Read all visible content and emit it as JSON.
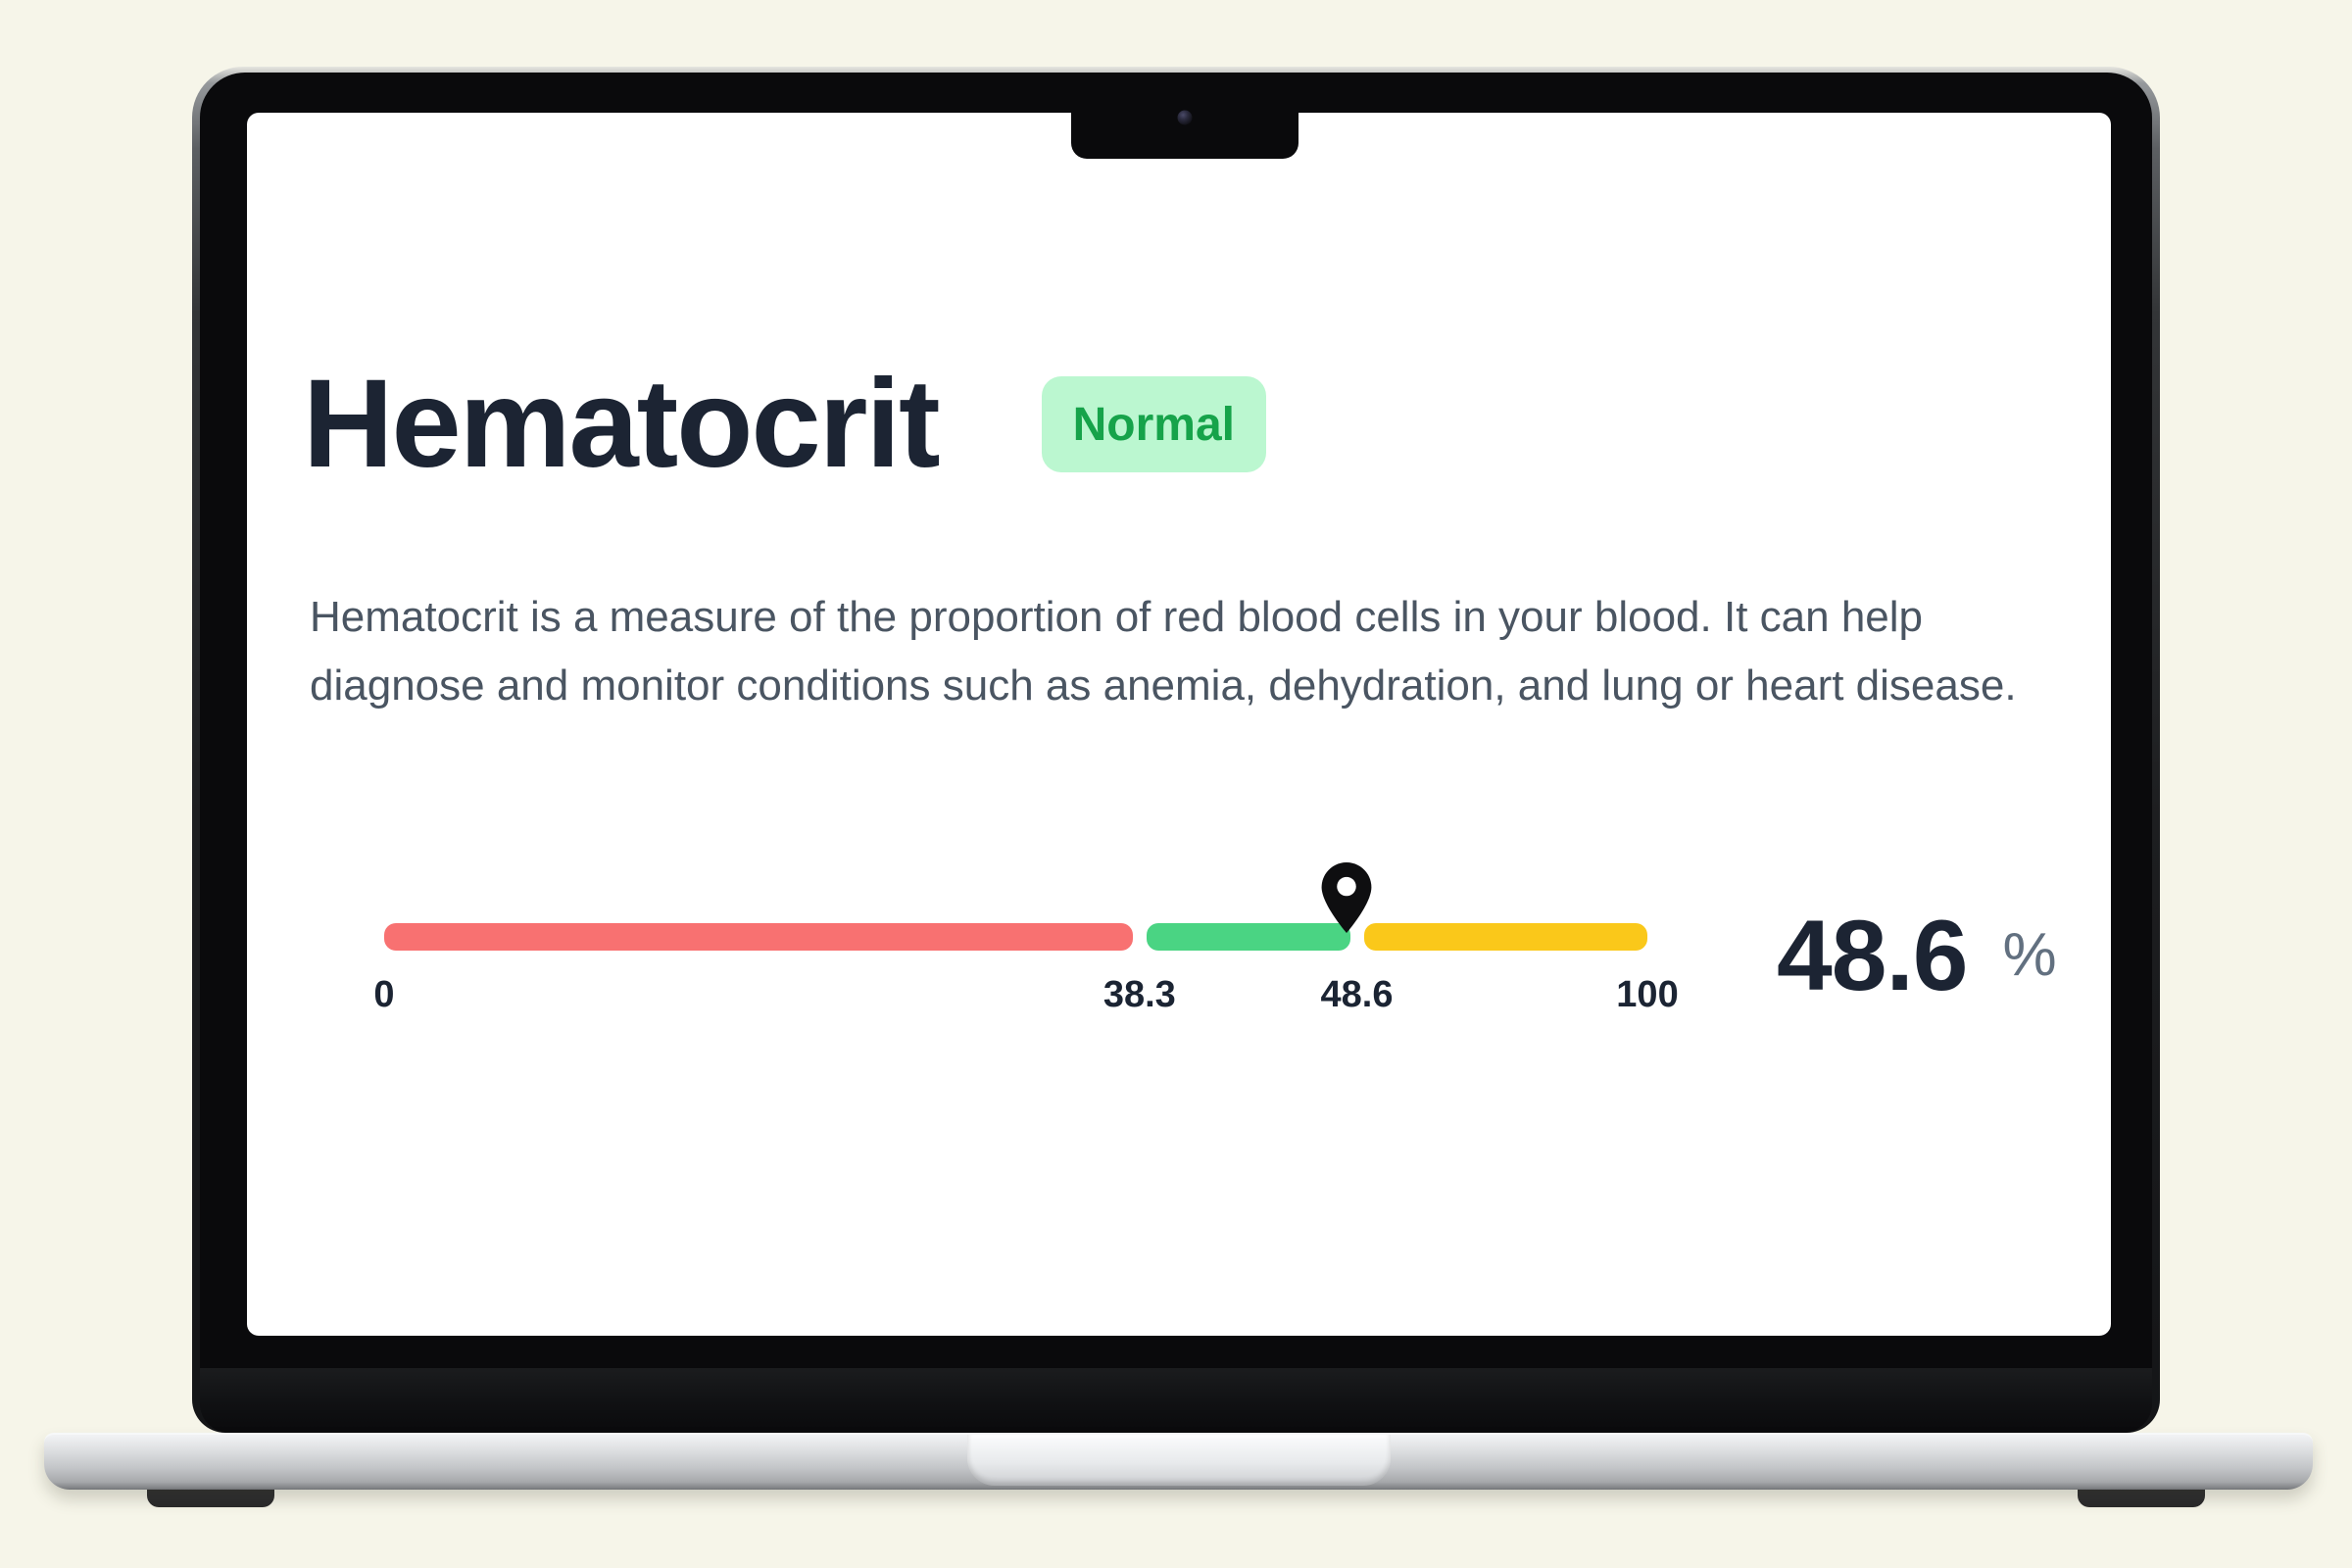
{
  "colors": {
    "page-bg": "#f6f5e9",
    "title": "#1c2433",
    "description": "#4a5562",
    "tick": "#1b2433",
    "unit": "#627080",
    "badge-bg": "#bbf7d0",
    "badge-text": "#16a34a",
    "pin": "#0e0e10"
  },
  "screen": {
    "title": "Hematocrit",
    "status_badge": {
      "label": "Normal"
    },
    "description": "Hematocrit is a measure of the proportion of red blood cells in your blood. It can help diagnose and monitor conditions such as anemia, dehydration, and lung or heart disease.",
    "reading": {
      "value": "48.6",
      "unit": "%"
    }
  },
  "chart_data": {
    "type": "bar",
    "title": "Hematocrit range gauge",
    "min": 0,
    "max": 100,
    "value": 48.6,
    "unit": "%",
    "status": "Normal",
    "ranges": [
      {
        "name": "below-normal",
        "from": 0,
        "to": 38.3,
        "color": "#f87171",
        "width_pct": 59.3
      },
      {
        "name": "normal",
        "from": 38.3,
        "to": 48.6,
        "color": "#4ad483",
        "width_pct": 16.1
      },
      {
        "name": "above-normal",
        "from": 48.6,
        "to": 100,
        "color": "#fac81a",
        "width_pct": 22.4
      }
    ],
    "ticks": [
      {
        "label": "0",
        "pos_pct": 0
      },
      {
        "label": "38.3",
        "pos_pct": 59.8
      },
      {
        "label": "48.6",
        "pos_pct": 77.0
      },
      {
        "label": "100",
        "pos_pct": 100
      }
    ],
    "marker": {
      "value": 48.6,
      "pos_pct": 76.2
    }
  }
}
